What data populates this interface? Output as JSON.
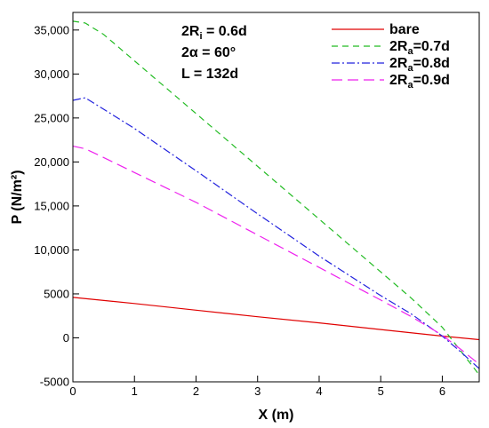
{
  "chart_data": {
    "type": "line",
    "xlabel": "X (m)",
    "ylabel": "P (N/m²)",
    "xlim": [
      0,
      6.6
    ],
    "ylim": [
      -5000,
      37000
    ],
    "x_ticks": [
      0,
      1,
      2,
      3,
      4,
      5,
      6
    ],
    "y_ticks": [
      -5000,
      0,
      5000,
      10000,
      15000,
      20000,
      25000,
      30000,
      35000
    ],
    "y_tick_labels": [
      "-5000",
      "0",
      "5000",
      "10,000",
      "15,000",
      "20,000",
      "25,000",
      "30,000",
      "35,000"
    ],
    "grid": false,
    "legend_position": "top-right",
    "annotations": [
      {
        "base": "2R",
        "sub": "i",
        "rest": " = 0.6d"
      },
      {
        "base": "2α",
        "sub": "",
        "rest": "  = 60°"
      },
      {
        "base": "L",
        "sub": "",
        "rest": "     = 132d"
      }
    ],
    "series": [
      {
        "name": "bare",
        "label_base": "bare",
        "label_sub": "",
        "label_rest": "",
        "color": "#e00000",
        "dash": "",
        "x": [
          0,
          1,
          2,
          3,
          4,
          5,
          6,
          6.6
        ],
        "y": [
          4600,
          3900,
          3150,
          2400,
          1700,
          950,
          200,
          -200
        ]
      },
      {
        "name": "2Ra=0.7d",
        "label_base": "2R",
        "label_sub": "a",
        "label_rest": "=0.7d",
        "color": "#22bb22",
        "dash": "7,5",
        "x": [
          0,
          0.2,
          0.5,
          1,
          2,
          3,
          4,
          5,
          5.5,
          6,
          6.3,
          6.6
        ],
        "y": [
          36000,
          35800,
          34500,
          31500,
          25500,
          19500,
          13500,
          7500,
          4500,
          1200,
          -1500,
          -4200
        ]
      },
      {
        "name": "2Ra=0.8d",
        "label_base": "2R",
        "label_sub": "a",
        "label_rest": "=0.8d",
        "color": "#2222dd",
        "dash": "9,3,2,3",
        "x": [
          0,
          0.2,
          0.5,
          1,
          2,
          3,
          4,
          5,
          5.5,
          6,
          6.3,
          6.6
        ],
        "y": [
          27000,
          27300,
          26000,
          23800,
          19000,
          14100,
          9300,
          4800,
          2700,
          200,
          -1600,
          -3500
        ]
      },
      {
        "name": "2Ra=0.9d",
        "label_base": "2R",
        "label_sub": "a",
        "label_rest": "=0.9d",
        "color": "#ee22ee",
        "dash": "12,6",
        "x": [
          0,
          0.2,
          0.5,
          1,
          2,
          3,
          4,
          5,
          5.5,
          6,
          6.3,
          6.6
        ],
        "y": [
          21800,
          21500,
          20500,
          18800,
          15400,
          11700,
          8000,
          4300,
          2400,
          300,
          -1300,
          -3000
        ]
      }
    ]
  }
}
